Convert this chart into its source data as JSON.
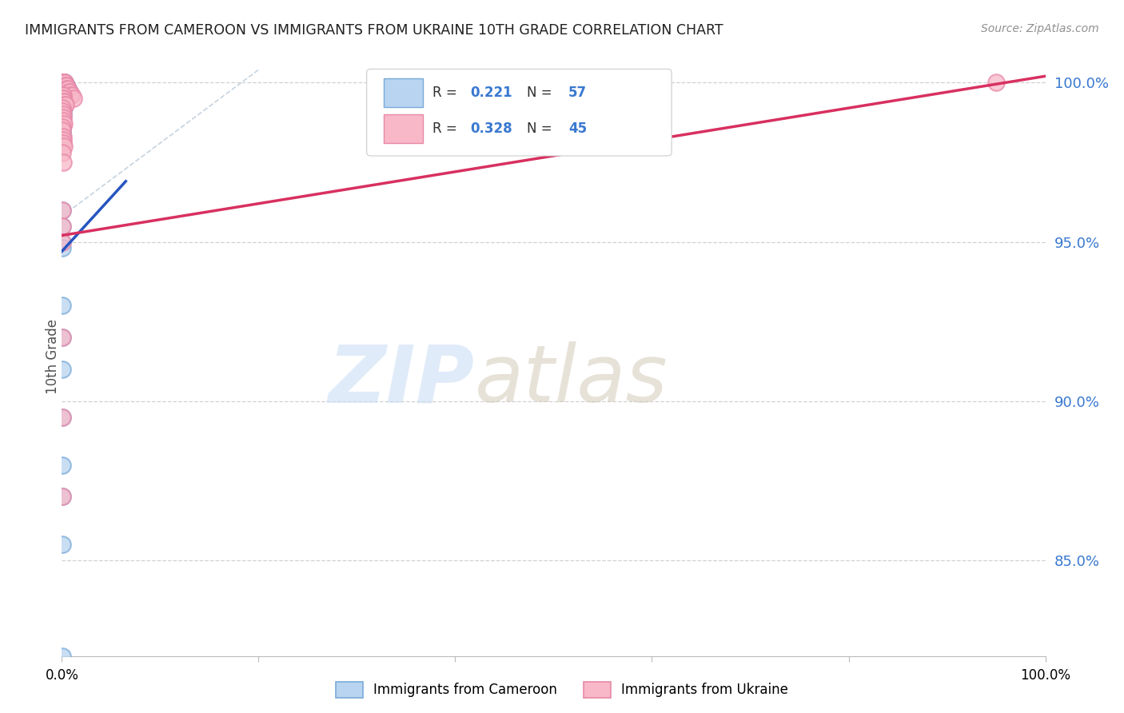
{
  "title": "IMMIGRANTS FROM CAMEROON VS IMMIGRANTS FROM UKRAINE 10TH GRADE CORRELATION CHART",
  "source": "Source: ZipAtlas.com",
  "ylabel": "10th Grade",
  "ylabel_right_labels": [
    "100.0%",
    "95.0%",
    "90.0%",
    "85.0%"
  ],
  "ylabel_right_positions": [
    1.0,
    0.95,
    0.9,
    0.85
  ],
  "R_cameroon": 0.221,
  "N_cameroon": 57,
  "R_ukraine": 0.328,
  "N_ukraine": 45,
  "color_cameroon_fill": "#b8d4f0",
  "color_cameroon_edge": "#7aaad8",
  "color_ukraine_fill": "#f8b8c8",
  "color_ukraine_edge": "#e888a8",
  "color_line_cameroon": "#2855c0",
  "color_line_ukraine": "#d83060",
  "color_diagonal": "#b8c8d8",
  "color_grid": "#cccccc",
  "color_right_labels": "#3878d0",
  "xlim": [
    0.0,
    1.0
  ],
  "ylim": [
    0.82,
    1.008
  ],
  "cam_x": [
    0.0008,
    0.0012,
    0.0015,
    0.0018,
    0.002,
    0.0022,
    0.0025,
    0.003,
    0.0032,
    0.0035,
    0.004,
    0.0042,
    0.0045,
    0.005,
    0.0052,
    0.006,
    0.0065,
    0.007,
    0.008,
    0.009,
    0.0005,
    0.001,
    0.0008,
    0.0012,
    0.0015,
    0.002,
    0.0025,
    0.003,
    0.0035,
    0.004,
    0.0005,
    0.0008,
    0.001,
    0.0012,
    0.0015,
    0.002,
    0.0008,
    0.001,
    0.0005,
    0.0007,
    0.0003,
    0.0005,
    0.0004,
    0.0006,
    0.0003,
    0.0004,
    0.0005,
    0.0003,
    0.0004,
    0.0003,
    0.0003,
    0.0004,
    0.0003,
    0.0003,
    0.0003,
    0.0003,
    0.0003
  ],
  "cam_y": [
    1.0,
    1.0,
    1.0,
    1.0,
    1.0,
    1.0,
    1.0,
    1.0,
    0.999,
    0.999,
    0.999,
    0.999,
    0.999,
    0.999,
    0.998,
    0.998,
    0.997,
    0.997,
    0.997,
    0.996,
    0.997,
    0.997,
    0.996,
    0.996,
    0.996,
    0.996,
    0.996,
    0.995,
    0.995,
    0.995,
    0.994,
    0.994,
    0.993,
    0.993,
    0.992,
    0.992,
    0.991,
    0.99,
    0.989,
    0.988,
    0.987,
    0.986,
    0.985,
    0.984,
    0.983,
    0.96,
    0.955,
    0.95,
    0.948,
    0.93,
    0.92,
    0.91,
    0.895,
    0.88,
    0.87,
    0.855,
    0.82
  ],
  "ukr_x": [
    0.0008,
    0.0012,
    0.0015,
    0.002,
    0.0025,
    0.003,
    0.0035,
    0.004,
    0.0045,
    0.005,
    0.006,
    0.007,
    0.008,
    0.009,
    0.01,
    0.012,
    0.0008,
    0.001,
    0.0012,
    0.0015,
    0.002,
    0.0025,
    0.003,
    0.0035,
    0.0005,
    0.0008,
    0.001,
    0.0012,
    0.0015,
    0.002,
    0.0005,
    0.0008,
    0.001,
    0.0012,
    0.0015,
    0.002,
    0.0008,
    0.001,
    0.0005,
    0.0007,
    0.0003,
    0.0005,
    0.0004,
    0.0006,
    0.95
  ],
  "ukr_y": [
    1.0,
    1.0,
    1.0,
    1.0,
    1.0,
    1.0,
    0.999,
    0.999,
    0.999,
    0.998,
    0.998,
    0.997,
    0.997,
    0.996,
    0.996,
    0.995,
    0.996,
    0.996,
    0.995,
    0.995,
    0.994,
    0.994,
    0.993,
    0.993,
    0.992,
    0.991,
    0.99,
    0.989,
    0.988,
    0.987,
    0.986,
    0.985,
    0.983,
    0.982,
    0.981,
    0.98,
    0.978,
    0.975,
    0.96,
    0.955,
    0.95,
    0.92,
    0.895,
    0.87,
    1.0
  ]
}
